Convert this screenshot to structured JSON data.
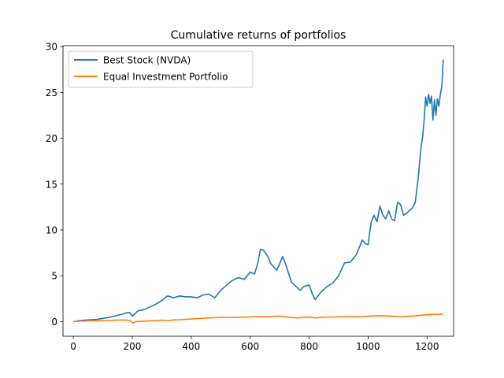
{
  "chart_data": {
    "type": "line",
    "title": "Cumulative returns of portfolios",
    "xlabel": "",
    "ylabel": "",
    "xlim": [
      -35,
      1290
    ],
    "ylim": [
      -1.6,
      30.1
    ],
    "xticks": [
      0,
      200,
      400,
      600,
      800,
      1000,
      1200
    ],
    "yticks": [
      0,
      5,
      10,
      15,
      20,
      25,
      30
    ],
    "grid": false,
    "legend_position": "top-left",
    "series": [
      {
        "name": "Best Stock (NVDA)",
        "color": "#1f77b4",
        "x": [
          0,
          20,
          40,
          60,
          80,
          100,
          120,
          140,
          160,
          180,
          190,
          200,
          220,
          240,
          260,
          280,
          300,
          320,
          340,
          360,
          380,
          400,
          420,
          440,
          460,
          480,
          500,
          520,
          540,
          560,
          580,
          600,
          615,
          625,
          635,
          645,
          660,
          670,
          690,
          700,
          710,
          720,
          740,
          760,
          770,
          780,
          800,
          810,
          820,
          840,
          860,
          880,
          900,
          920,
          940,
          960,
          980,
          990,
          1000,
          1010,
          1020,
          1030,
          1040,
          1050,
          1060,
          1070,
          1080,
          1090,
          1100,
          1110,
          1120,
          1130,
          1140,
          1150,
          1160,
          1170,
          1175,
          1180,
          1185,
          1190,
          1195,
          1200,
          1205,
          1210,
          1215,
          1220,
          1225,
          1230,
          1235,
          1240,
          1245,
          1250,
          1255
        ],
        "y": [
          0.0,
          0.1,
          0.15,
          0.2,
          0.25,
          0.35,
          0.45,
          0.6,
          0.75,
          0.95,
          1.0,
          0.6,
          1.2,
          1.3,
          1.6,
          1.9,
          2.3,
          2.8,
          2.6,
          2.8,
          2.7,
          2.7,
          2.6,
          2.9,
          3.0,
          2.6,
          3.4,
          4.0,
          4.5,
          4.8,
          4.6,
          5.4,
          5.2,
          6.3,
          7.9,
          7.8,
          7.1,
          6.3,
          5.6,
          6.3,
          7.1,
          6.3,
          4.3,
          3.7,
          3.4,
          3.8,
          4.0,
          3.1,
          2.4,
          3.2,
          3.8,
          4.2,
          5.0,
          6.4,
          6.5,
          7.3,
          8.9,
          8.5,
          8.4,
          10.8,
          11.6,
          10.9,
          12.6,
          11.6,
          11.2,
          12.1,
          11.2,
          11.0,
          13.0,
          12.8,
          11.6,
          11.8,
          12.1,
          12.4,
          13.0,
          15.7,
          17.5,
          19.1,
          20.2,
          22.0,
          24.5,
          23.5,
          24.8,
          23.8,
          24.6,
          22.0,
          24.2,
          22.5,
          24.3,
          23.5,
          24.8,
          25.6,
          28.6
        ]
      },
      {
        "name": "Equal Investment Portfolio",
        "color": "#ff7f0e",
        "x": [
          0,
          20,
          40,
          60,
          80,
          100,
          120,
          140,
          160,
          180,
          195,
          200,
          215,
          240,
          260,
          280,
          300,
          320,
          340,
          360,
          380,
          400,
          420,
          440,
          460,
          480,
          500,
          520,
          540,
          560,
          580,
          600,
          620,
          640,
          660,
          680,
          700,
          720,
          740,
          760,
          780,
          800,
          820,
          840,
          860,
          880,
          900,
          920,
          940,
          960,
          980,
          1000,
          1020,
          1040,
          1060,
          1080,
          1100,
          1120,
          1140,
          1160,
          1180,
          1200,
          1220,
          1240,
          1255
        ],
        "y": [
          0.0,
          0.05,
          0.06,
          0.1,
          0.09,
          0.1,
          0.12,
          0.15,
          0.17,
          0.18,
          0.05,
          -0.15,
          0.0,
          0.05,
          0.08,
          0.1,
          0.15,
          0.12,
          0.18,
          0.2,
          0.25,
          0.28,
          0.33,
          0.36,
          0.4,
          0.42,
          0.45,
          0.46,
          0.47,
          0.48,
          0.5,
          0.5,
          0.55,
          0.56,
          0.52,
          0.58,
          0.6,
          0.5,
          0.45,
          0.4,
          0.45,
          0.5,
          0.4,
          0.45,
          0.5,
          0.5,
          0.53,
          0.55,
          0.55,
          0.5,
          0.55,
          0.6,
          0.62,
          0.64,
          0.62,
          0.6,
          0.55,
          0.55,
          0.6,
          0.62,
          0.7,
          0.75,
          0.78,
          0.8,
          0.82
        ]
      }
    ]
  }
}
